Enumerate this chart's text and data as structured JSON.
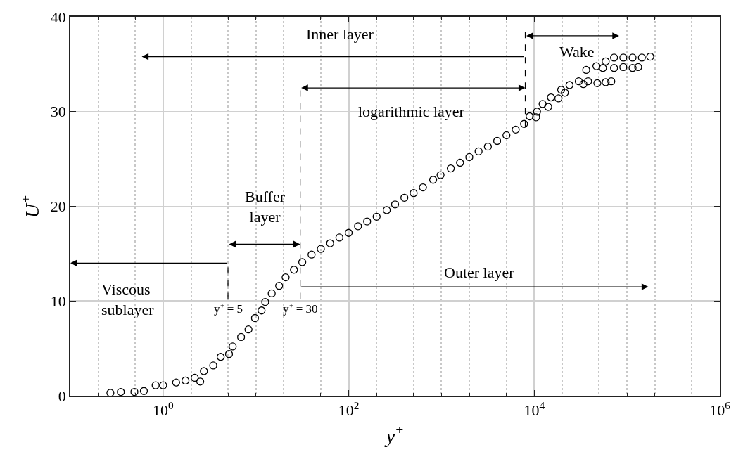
{
  "chart_data": {
    "type": "scatter",
    "xlabel": "y$^{+}$",
    "ylabel": "U$^{+}$",
    "log": "x",
    "grid": true,
    "marker": "circle",
    "xlim": [
      0.1,
      1000000
    ],
    "xticks": [
      {
        "value": 1,
        "label": "10$^{0}$"
      },
      {
        "value": 100,
        "label": "10$^{2}$"
      },
      {
        "value": 10000,
        "label": "10$^{4}$"
      },
      {
        "value": 1000000,
        "label": "10$^{6}$"
      }
    ],
    "ylim": [
      0,
      40
    ],
    "yticks": [
      0,
      10,
      20,
      30,
      40
    ],
    "series": [
      {
        "color": "#000000",
        "x": [
          0.27,
          0.35,
          0.49,
          0.62,
          0.83,
          1.0,
          1.38,
          1.74,
          2.19,
          2.51,
          2.75,
          3.47,
          4.17,
          5.13,
          5.62,
          6.92,
          8.32,
          9.77,
          11.5,
          12.6,
          14.8,
          17.8,
          20.9,
          25.7,
          31.6,
          39.8,
          50.1,
          63.1,
          79.4,
          100,
          126,
          158,
          200,
          257,
          316,
          398,
          501,
          631,
          813,
          977,
          1259,
          1585,
          1995,
          2512,
          3162,
          3981,
          5012,
          6310,
          7762,
          8913,
          10470,
          10715,
          12303,
          14125,
          15136,
          18197,
          19498,
          21380,
          23988,
          30200,
          33884,
          38019,
          36308,
          47863,
          58884,
          67608,
          46774,
          54954,
          58884,
          72444,
          72444,
          91201,
          91201,
          114815,
          114815,
          131826,
          144544,
          177828
        ],
        "values": [
          0.3,
          0.4,
          0.4,
          0.5,
          1.1,
          1.1,
          1.4,
          1.6,
          1.9,
          1.5,
          2.6,
          3.2,
          4.1,
          4.4,
          5.2,
          6.2,
          7.0,
          8.2,
          9.0,
          9.9,
          10.8,
          11.6,
          12.5,
          13.3,
          14.1,
          14.9,
          15.5,
          16.1,
          16.7,
          17.2,
          17.9,
          18.4,
          18.9,
          19.6,
          20.2,
          20.9,
          21.4,
          22.0,
          22.8,
          23.3,
          24.0,
          24.6,
          25.2,
          25.8,
          26.3,
          26.9,
          27.5,
          28.1,
          28.7,
          29.5,
          29.4,
          30.0,
          30.8,
          30.5,
          31.5,
          31.4,
          32.3,
          32.0,
          32.8,
          33.2,
          32.9,
          33.2,
          34.4,
          33.0,
          33.1,
          33.2,
          34.8,
          34.6,
          35.3,
          34.6,
          35.7,
          35.7,
          34.7,
          35.7,
          34.6,
          34.7,
          35.7,
          35.8
        ]
      }
    ],
    "ref_lines": [
      {
        "axis": "x",
        "value": 5,
        "label": "y⁺ = 5",
        "line_style": "dashed",
        "color": "#000000"
      },
      {
        "axis": "x",
        "value": 30,
        "label": "y⁺ = 30",
        "line_style": "dashed",
        "color": "#000000"
      },
      {
        "axis": "x",
        "value": 8000,
        "label": null,
        "line_style": "dashed",
        "color": "#000000"
      }
    ],
    "annotations": [
      "Inner layer",
      "Wake",
      "logarithmic layer",
      "Buffer\nlayer",
      "Viscous\nsublayer",
      "Outer layer"
    ]
  }
}
